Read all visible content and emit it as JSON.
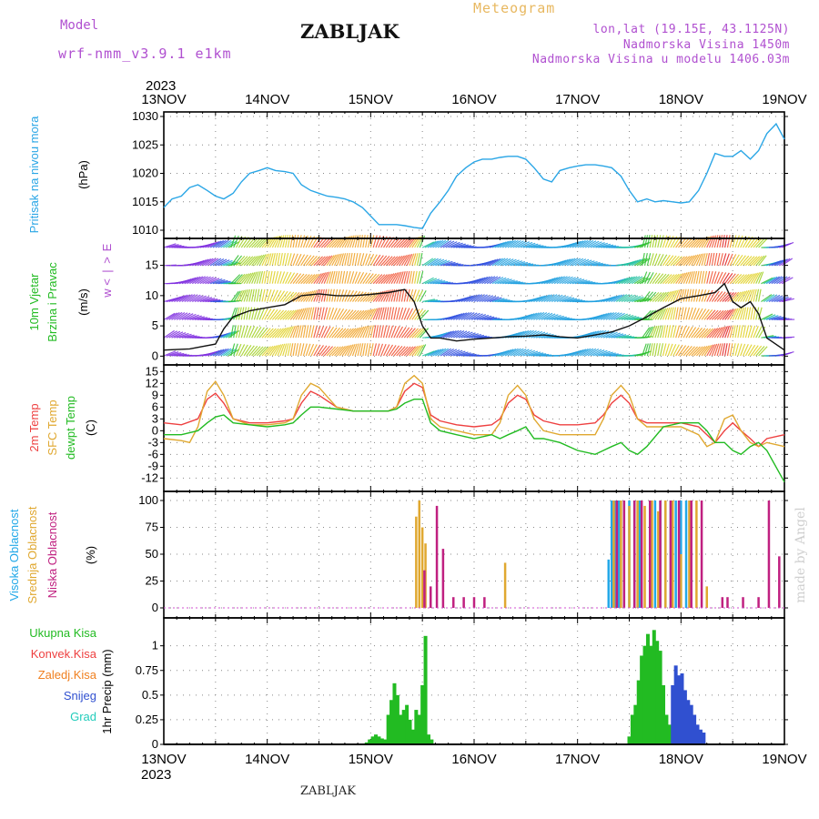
{
  "header": {
    "model_label": "Model",
    "model_name": "wrf-nmm_v3.9.1  e1km",
    "station": "ZABLJAK",
    "title": "Meteogram",
    "lonlat": "lon,lat (19.15E, 43.1125N)",
    "elevation": "Nadmorska Visina 1450m",
    "model_elevation": "Nadmorska Visina u modelu 1406.03m"
  },
  "footer": {
    "station": "ZABLJAK",
    "credit": "made by Angel"
  },
  "colors": {
    "pressure": "#2aa6e6",
    "temp2m": "#ee4040",
    "sfc": "#e0a830",
    "dewpt": "#22bb22",
    "label_purple": "#b050d0",
    "cloud_high": "#22a8e8",
    "cloud_mid": "#e0a830",
    "cloud_low": "#c02080",
    "precip_total": "#22bb22",
    "precip_conv": "#ee4040",
    "precip_frz": "#f08020",
    "snow": "#3050d0",
    "hail": "#22ccbb"
  },
  "chart_data": {
    "time_axis": {
      "year": "2023",
      "start": "13NOV",
      "end": "19NOV",
      "ticks": [
        "13NOV",
        "14NOV",
        "15NOV",
        "16NOV",
        "17NOV",
        "18NOV",
        "19NOV"
      ]
    },
    "panels": [
      {
        "id": "pressure",
        "type": "line",
        "label_lines": [
          "Pritisak na nivou mora"
        ],
        "unit": "(hPa)",
        "ylim": [
          1010,
          1030
        ],
        "yticks": [
          1010,
          1015,
          1020,
          1025,
          1030
        ],
        "grid": true,
        "series": [
          {
            "x": [
              0,
              0.08,
              0.17,
              0.25,
              0.33,
              0.42,
              0.5,
              0.58,
              0.67,
              0.75,
              0.83,
              0.92,
              1.0,
              1.08,
              1.17,
              1.25,
              1.33,
              1.42,
              1.5,
              1.58,
              1.67,
              1.75,
              1.83,
              1.92,
              2.0,
              2.08,
              2.17,
              2.25,
              2.33,
              2.42,
              2.5,
              2.58,
              2.67,
              2.75,
              2.83,
              2.92,
              3.0,
              3.08,
              3.17,
              3.25,
              3.33,
              3.42,
              3.5,
              3.58,
              3.67,
              3.75,
              3.83,
              3.92,
              4.0,
              4.08,
              4.17,
              4.25,
              4.33,
              4.42,
              4.5,
              4.58,
              4.67,
              4.75,
              4.83,
              4.92,
              5.0,
              5.08,
              5.17,
              5.25,
              5.33,
              5.42,
              5.5,
              5.58,
              5.67,
              5.75,
              5.83,
              5.92,
              6.0
            ],
            "y": [
              1014,
              1015.5,
              1016,
              1017.5,
              1018,
              1017,
              1016,
              1015.5,
              1016.5,
              1018.5,
              1020,
              1020.5,
              1021,
              1020.5,
              1020.3,
              1020,
              1018,
              1017,
              1016.5,
              1016,
              1015.8,
              1015.5,
              1015,
              1014,
              1012.5,
              1011,
              1011,
              1011,
              1010.8,
              1010.5,
              1010.3,
              1013,
              1015,
              1017,
              1019.5,
              1021,
              1022,
              1022.5,
              1022.5,
              1022.8,
              1023,
              1023,
              1022.5,
              1021,
              1019,
              1018.5,
              1020.5,
              1021,
              1021.3,
              1021.5,
              1021.5,
              1021.3,
              1021,
              1019.5,
              1017,
              1015,
              1015.5,
              1015,
              1015.2,
              1015,
              1014.8,
              1015,
              1017,
              1020,
              1023.5,
              1023,
              1023,
              1024,
              1022.5,
              1024,
              1027,
              1028.7,
              1026
            ]
          }
        ]
      },
      {
        "id": "wind",
        "type": "line",
        "label_lines": [
          "10m Vjetar",
          "Brzina i Pravac"
        ],
        "unit": "(m/s)",
        "direction_labels": [
          "w",
          "<",
          "|",
          ">",
          "E"
        ],
        "ylim": [
          -1,
          19
        ],
        "yticks": [
          0,
          5,
          10,
          15
        ],
        "grid": true,
        "series": [
          {
            "name": "speed",
            "x": [
              0,
              0.25,
              0.5,
              0.58,
              0.67,
              0.75,
              0.83,
              1.0,
              1.17,
              1.33,
              1.5,
              1.67,
              1.83,
              2.0,
              2.17,
              2.33,
              2.42,
              2.5,
              2.58,
              2.67,
              2.83,
              3.0,
              3.17,
              3.33,
              3.5,
              3.67,
              3.83,
              4.0,
              4.17,
              4.33,
              4.5,
              4.67,
              4.83,
              5.0,
              5.17,
              5.33,
              5.42,
              5.5,
              5.58,
              5.67,
              5.75,
              5.83,
              6.0
            ],
            "y": [
              1,
              1.2,
              2,
              4.5,
              6.5,
              7,
              7.5,
              8,
              8.5,
              10,
              10.3,
              10,
              10,
              10.2,
              10.5,
              11,
              9,
              5,
              3,
              3,
              2.5,
              2.8,
              3,
              3.2,
              3.3,
              3.5,
              3.2,
              3,
              3.5,
              4,
              5,
              6.5,
              8,
              9.5,
              10,
              10.5,
              12,
              9,
              8,
              9,
              7,
              3,
              1
            ]
          }
        ]
      },
      {
        "id": "temp",
        "type": "line",
        "label_lines": [
          "2m Temp",
          "SFC Temp",
          "dewpt Temp"
        ],
        "unit": "(C)",
        "ylim": [
          -14,
          16
        ],
        "yticks": [
          -12,
          -9,
          -6,
          -3,
          0,
          3,
          6,
          9,
          12,
          15
        ],
        "grid": true,
        "series": [
          {
            "name": "2m Temp",
            "x": [
              0,
              0.17,
              0.33,
              0.42,
              0.5,
              0.58,
              0.67,
              0.83,
              1.0,
              1.17,
              1.25,
              1.33,
              1.42,
              1.5,
              1.67,
              1.83,
              2.0,
              2.17,
              2.25,
              2.33,
              2.42,
              2.5,
              2.58,
              2.67,
              2.83,
              3.0,
              3.17,
              3.25,
              3.33,
              3.42,
              3.5,
              3.58,
              3.67,
              3.83,
              4.0,
              4.17,
              4.25,
              4.33,
              4.42,
              4.5,
              4.58,
              4.67,
              4.83,
              5.0,
              5.17,
              5.25,
              5.33,
              5.42,
              5.5,
              5.58,
              5.67,
              5.75,
              5.83,
              6.0
            ],
            "y": [
              2,
              1.5,
              3,
              8,
              9.5,
              7,
              3,
              2,
              2,
              2.5,
              3,
              7,
              10,
              9,
              6,
              5,
              5,
              5,
              6,
              10,
              12,
              11,
              4,
              2.5,
              1.5,
              1,
              1.5,
              3,
              7,
              9,
              8,
              4,
              2.5,
              1.5,
              1.5,
              2,
              4,
              7,
              9,
              7,
              3,
              2,
              2,
              2,
              1,
              -1,
              -3,
              0,
              2,
              0,
              -2,
              -4,
              -2,
              -1
            ]
          },
          {
            "name": "SFC Temp",
            "x": [
              0,
              0.17,
              0.25,
              0.33,
              0.42,
              0.5,
              0.58,
              0.67,
              0.83,
              1.0,
              1.17,
              1.25,
              1.33,
              1.42,
              1.5,
              1.67,
              1.83,
              2.0,
              2.17,
              2.25,
              2.33,
              2.42,
              2.5,
              2.58,
              2.67,
              2.83,
              3.0,
              3.17,
              3.25,
              3.33,
              3.42,
              3.5,
              3.58,
              3.67,
              3.83,
              4.0,
              4.17,
              4.25,
              4.33,
              4.42,
              4.5,
              4.58,
              4.67,
              4.83,
              5.0,
              5.17,
              5.25,
              5.33,
              5.42,
              5.5,
              5.58,
              5.67,
              5.75,
              5.83,
              6.0
            ],
            "y": [
              -2,
              -2.5,
              -3,
              1,
              10,
              12.5,
              9,
              3,
              1.5,
              1.5,
              2,
              3,
              9,
              12,
              11,
              6,
              5,
              5,
              5,
              6,
              12,
              14,
              12,
              3,
              1,
              0,
              -1,
              -1,
              2,
              9,
              11.5,
              9,
              3,
              0,
              -1,
              -1,
              -1,
              3,
              9,
              11.5,
              9,
              3,
              1,
              1,
              1,
              -1,
              -4,
              -3,
              3,
              4,
              0,
              -3,
              -4,
              -3,
              -4
            ]
          },
          {
            "name": "dewpt Temp",
            "x": [
              0,
              0.17,
              0.33,
              0.42,
              0.5,
              0.58,
              0.67,
              0.83,
              1.0,
              1.17,
              1.25,
              1.33,
              1.42,
              1.5,
              1.67,
              1.83,
              2.0,
              2.17,
              2.25,
              2.33,
              2.42,
              2.5,
              2.58,
              2.67,
              2.83,
              3.0,
              3.17,
              3.25,
              3.33,
              3.42,
              3.5,
              3.58,
              3.67,
              3.83,
              4.0,
              4.17,
              4.25,
              4.33,
              4.42,
              4.5,
              4.58,
              4.67,
              4.83,
              5.0,
              5.17,
              5.25,
              5.33,
              5.42,
              5.5,
              5.58,
              5.67,
              5.75,
              5.83,
              6.0
            ],
            "y": [
              -1,
              -1,
              0,
              2,
              3.5,
              4,
              2,
              1.5,
              1,
              1.5,
              2,
              4,
              6,
              6,
              5.5,
              5,
              5,
              5,
              5.5,
              7,
              8,
              8,
              2,
              0,
              -1,
              -2,
              -1,
              -2,
              -1,
              0,
              1,
              -2,
              -2,
              -3,
              -5,
              -6,
              -5,
              -4,
              -3,
              -5,
              -6,
              -4,
              1,
              2,
              2,
              0,
              -3,
              -3,
              -5,
              -6,
              -4,
              -3,
              -5,
              -13
            ]
          }
        ]
      },
      {
        "id": "clouds",
        "type": "bar",
        "label_lines": [
          "Visoka Oblacnost",
          "Srednja Oblacnost",
          "Niska Oblacnost"
        ],
        "unit": "(%)",
        "ylim": [
          0,
          100
        ],
        "yticks": [
          0,
          25,
          50,
          75,
          100
        ],
        "grid": true,
        "series": [
          {
            "name": "Visoka Oblacnost",
            "x": [
              4.3,
              4.33,
              4.36,
              4.4,
              4.45,
              4.5,
              4.55,
              4.6,
              4.7,
              4.75,
              4.8,
              4.85,
              4.9,
              4.95,
              5.0,
              5.05
            ],
            "y": [
              45,
              100,
              100,
              100,
              100,
              100,
              100,
              100,
              100,
              100,
              100,
              100,
              100,
              100,
              100,
              100
            ]
          },
          {
            "name": "Srednja Oblacnost",
            "x": [
              2.44,
              2.47,
              2.5,
              2.53,
              3.3,
              4.35,
              4.42,
              4.5,
              4.58,
              4.65,
              4.72,
              4.78,
              4.85,
              4.92,
              5.0,
              5.08,
              5.15,
              5.25
            ],
            "y": [
              85,
              100,
              75,
              60,
              42,
              100,
              100,
              95,
              100,
              95,
              100,
              90,
              100,
              100,
              50,
              100,
              100,
              20
            ]
          },
          {
            "name": "Niska Oblacnost",
            "x": [
              2.52,
              2.58,
              2.64,
              2.7,
              2.8,
              2.9,
              3.0,
              3.1,
              4.38,
              4.45,
              4.55,
              4.62,
              4.7,
              4.8,
              4.9,
              4.98,
              5.1,
              5.2,
              5.4,
              5.45,
              5.6,
              5.75,
              5.85,
              5.95
            ],
            "y": [
              35,
              20,
              95,
              55,
              10,
              10,
              10,
              10,
              100,
              100,
              100,
              100,
              100,
              100,
              100,
              100,
              100,
              100,
              10,
              10,
              10,
              10,
              100,
              48
            ]
          }
        ]
      },
      {
        "id": "precip",
        "type": "bar",
        "label_lines": [
          "1hr Precip"
        ],
        "unit": "(mm)",
        "ylim": [
          0,
          1.2
        ],
        "yticks": [
          0,
          0.25,
          0.5,
          0.75,
          1
        ],
        "grid": true,
        "legend": [
          "Ukupna Kisa",
          "Konvek.Kisa",
          "Zaledj.Kisa",
          "Snijeg",
          "Grad"
        ],
        "series": [
          {
            "name": "Ukupna Kisa",
            "x": [
              1.96,
              1.99,
              2.02,
              2.05,
              2.08,
              2.11,
              2.14,
              2.17,
              2.2,
              2.23,
              2.26,
              2.29,
              2.32,
              2.35,
              2.38,
              2.41,
              2.44,
              2.47,
              2.5,
              2.53,
              2.56,
              2.59,
              4.5,
              4.53,
              4.56,
              4.59,
              4.62,
              4.65,
              4.68,
              4.71,
              4.74,
              4.77,
              4.8,
              4.83,
              4.86,
              4.89,
              4.92,
              4.95,
              4.98,
              5.01
            ],
            "y": [
              0.02,
              0.05,
              0.08,
              0.1,
              0.08,
              0.06,
              0.05,
              0.3,
              0.45,
              0.62,
              0.5,
              0.3,
              0.35,
              0.4,
              0.25,
              0.15,
              0.35,
              0.3,
              0.6,
              1.1,
              0.1,
              0.05,
              0.08,
              0.3,
              0.4,
              0.65,
              0.9,
              1.0,
              1.12,
              1.0,
              1.16,
              1.05,
              0.95,
              0.6,
              0.3,
              0.2,
              0.05,
              0.05,
              0.05,
              0.02
            ]
          },
          {
            "name": "Snijeg",
            "x": [
              4.92,
              4.95,
              4.98,
              5.01,
              5.04,
              5.07,
              5.1,
              5.13,
              5.16,
              5.19,
              5.22
            ],
            "y": [
              0.6,
              0.8,
              0.7,
              0.72,
              0.55,
              0.45,
              0.4,
              0.3,
              0.2,
              0.15,
              0.12
            ]
          }
        ]
      }
    ]
  }
}
